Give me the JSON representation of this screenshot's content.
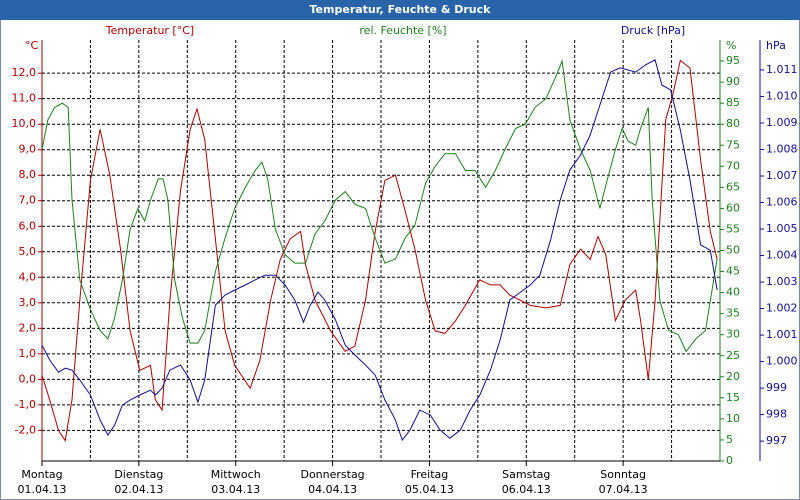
{
  "chart_data": {
    "type": "line",
    "title": "Temperatur, Feuchte & Druck",
    "xlim": [
      0,
      7
    ],
    "xticks": [
      {
        "value": 0,
        "label": "Montag"
      },
      {
        "value": 1,
        "label": "Dienstag"
      },
      {
        "value": 2,
        "label": "Mittwoch"
      },
      {
        "value": 3,
        "label": "Donnerstag"
      },
      {
        "value": 4,
        "label": "Freitag"
      },
      {
        "value": 5,
        "label": "Samstag"
      },
      {
        "value": 6,
        "label": "Sonntag"
      }
    ],
    "xtick_dates": [
      "01.04.13",
      "02.04.13",
      "03.04.13",
      "04.04.13",
      "05.04.13",
      "06.04.13",
      "07.04.13"
    ],
    "xminor": [
      0.5,
      1.5,
      2.5,
      3.5,
      4.5,
      5.5,
      6.5,
      7
    ],
    "grid": true,
    "ylabel": "°C",
    "ylim": [
      -3.2,
      13.3
    ],
    "yticks": [
      {
        "value": -2,
        "label": "-2,0"
      },
      {
        "value": -1,
        "label": "-1,0"
      },
      {
        "value": 0,
        "label": "0,0"
      },
      {
        "value": 1,
        "label": "1,0"
      },
      {
        "value": 2,
        "label": "2,0"
      },
      {
        "value": 3,
        "label": "3,0"
      },
      {
        "value": 4,
        "label": "4,0"
      },
      {
        "value": 5,
        "label": "5,0"
      },
      {
        "value": 6,
        "label": "6,0"
      },
      {
        "value": 7,
        "label": "7,0"
      },
      {
        "value": 8,
        "label": "8,0"
      },
      {
        "value": 9,
        "label": "9,0"
      },
      {
        "value": 10,
        "label": "10,0"
      },
      {
        "value": 11,
        "label": "11,0"
      },
      {
        "value": 12,
        "label": "12,0"
      }
    ],
    "y2label": "%",
    "y2lim": [
      0,
      100
    ],
    "y2ticks": [
      0,
      5,
      10,
      15,
      20,
      25,
      30,
      35,
      40,
      45,
      50,
      55,
      60,
      65,
      70,
      75,
      80,
      85,
      90,
      95
    ],
    "y3label": "hPa",
    "y3lim": [
      996.25,
      1012.13
    ],
    "y3ticks": [
      997,
      998,
      999,
      {
        "value": 1000,
        "label": "1.000"
      },
      {
        "value": 1001,
        "label": "1.001"
      },
      {
        "value": 1002,
        "label": "1.002"
      },
      {
        "value": 1003,
        "label": "1.003"
      },
      {
        "value": 1004,
        "label": "1.004"
      },
      {
        "value": 1005,
        "label": "1.005"
      },
      {
        "value": 1006,
        "label": "1.006"
      },
      {
        "value": 1007,
        "label": "1.007"
      },
      {
        "value": 1008,
        "label": "1.008"
      },
      {
        "value": 1009,
        "label": "1.009"
      },
      {
        "value": 1010,
        "label": "1.010"
      },
      {
        "value": 1011,
        "label": "1.011"
      }
    ],
    "series": [
      {
        "name": "Temperatur [°C]",
        "color": "#b00000",
        "axis": "y",
        "x": [
          0,
          0.08,
          0.17,
          0.24,
          0.31,
          0.39,
          0.5,
          0.6,
          0.7,
          0.81,
          0.91,
          1.01,
          1.12,
          1.17,
          1.24,
          1.32,
          1.43,
          1.53,
          1.6,
          1.68,
          1.79,
          1.89,
          1.99,
          2.15,
          2.25,
          2.36,
          2.46,
          2.56,
          2.67,
          2.72,
          2.82,
          2.98,
          3.13,
          3.23,
          3.34,
          3.44,
          3.54,
          3.65,
          3.75,
          3.85,
          3.96,
          4.06,
          4.16,
          4.27,
          4.37,
          4.52,
          4.63,
          4.73,
          4.83,
          4.94,
          5.04,
          5.2,
          5.35,
          5.45,
          5.56,
          5.66,
          5.74,
          5.82,
          5.92,
          6.02,
          6.13,
          6.18,
          6.26,
          6.33,
          6.44,
          6.51,
          6.59,
          6.69,
          6.8,
          6.9,
          6.97
        ],
        "values": [
          0.16,
          -0.8,
          -2.0,
          -2.4,
          -0.8,
          3.1,
          7.8,
          9.8,
          8.0,
          5.1,
          1.9,
          0.35,
          0.55,
          -0.8,
          -1.2,
          3.1,
          7.4,
          9.8,
          10.6,
          9.4,
          5.5,
          1.9,
          0.55,
          -0.35,
          0.75,
          3.1,
          4.7,
          5.5,
          5.8,
          4.5,
          3.1,
          1.9,
          1.1,
          1.3,
          3.1,
          5.8,
          7.8,
          8.0,
          6.6,
          5.1,
          3.1,
          1.9,
          1.8,
          2.3,
          2.9,
          3.9,
          3.7,
          3.7,
          3.3,
          3.1,
          2.9,
          2.8,
          2.9,
          4.5,
          5.1,
          4.7,
          5.6,
          4.9,
          2.3,
          3.1,
          3.5,
          2.3,
          0.0,
          3.1,
          10.2,
          11.1,
          12.5,
          12.2,
          8.6,
          5.8,
          4.7
        ]
      },
      {
        "name": "rel. Feuchte [%]",
        "color": "#208020",
        "axis": "y2",
        "x": [
          0,
          0.06,
          0.13,
          0.21,
          0.27,
          0.31,
          0.39,
          0.5,
          0.6,
          0.68,
          0.75,
          0.83,
          0.91,
          0.99,
          1.06,
          1.12,
          1.2,
          1.25,
          1.3,
          1.37,
          1.45,
          1.53,
          1.61,
          1.68,
          1.79,
          1.89,
          1.99,
          2.1,
          2.2,
          2.27,
          2.33,
          2.41,
          2.51,
          2.61,
          2.72,
          2.82,
          2.92,
          3.03,
          3.13,
          3.23,
          3.34,
          3.44,
          3.54,
          3.65,
          3.75,
          3.85,
          3.96,
          4.06,
          4.16,
          4.27,
          4.37,
          4.47,
          4.58,
          4.68,
          4.78,
          4.89,
          4.99,
          5.09,
          5.2,
          5.3,
          5.37,
          5.45,
          5.56,
          5.66,
          5.76,
          5.85,
          5.92,
          5.99,
          6.05,
          6.13,
          6.18,
          6.26,
          6.3,
          6.38,
          6.47,
          6.57,
          6.65,
          6.75,
          6.85,
          6.92,
          6.97
        ],
        "values": [
          74,
          81,
          84,
          85,
          84,
          62,
          43,
          36,
          31,
          29,
          34,
          43,
          55,
          60,
          57,
          62,
          67,
          67,
          62,
          43,
          34,
          28,
          28,
          31,
          45,
          53,
          60,
          65,
          69,
          71,
          67,
          55,
          49,
          47,
          47,
          54,
          57,
          62,
          64,
          61,
          60,
          53,
          47,
          48,
          53,
          56,
          66,
          70,
          73,
          73,
          69,
          69,
          65,
          69,
          74,
          79,
          80,
          84,
          86,
          91,
          95,
          81,
          74,
          69,
          60,
          68,
          74,
          79,
          76,
          75,
          79,
          84,
          62,
          38,
          31,
          30,
          26,
          29,
          31,
          41,
          48
        ]
      },
      {
        "name": "Druck [hPa]",
        "color": "#101090",
        "axis": "y3",
        "x": [
          0,
          0.08,
          0.17,
          0.24,
          0.31,
          0.39,
          0.5,
          0.6,
          0.68,
          0.75,
          0.83,
          0.91,
          1.01,
          1.12,
          1.17,
          1.24,
          1.32,
          1.43,
          1.53,
          1.61,
          1.68,
          1.79,
          1.89,
          1.99,
          2.1,
          2.2,
          2.3,
          2.41,
          2.51,
          2.61,
          2.7,
          2.77,
          2.85,
          2.92,
          3.03,
          3.13,
          3.23,
          3.34,
          3.44,
          3.54,
          3.65,
          3.72,
          3.8,
          3.9,
          4.01,
          4.11,
          4.21,
          4.32,
          4.42,
          4.52,
          4.63,
          4.73,
          4.83,
          4.94,
          5.04,
          5.14,
          5.25,
          5.35,
          5.45,
          5.56,
          5.66,
          5.76,
          5.87,
          5.97,
          6.05,
          6.13,
          6.23,
          6.33,
          6.4,
          6.49,
          6.59,
          6.69,
          6.8,
          6.9,
          6.97
        ],
        "values": [
          1000.62,
          1000.06,
          999.6,
          999.75,
          999.68,
          999.3,
          998.74,
          997.8,
          997.23,
          997.6,
          998.36,
          998.55,
          998.74,
          998.92,
          998.74,
          999.0,
          999.68,
          999.87,
          999.3,
          998.47,
          999.3,
          1002.13,
          1002.51,
          1002.7,
          1002.89,
          1003.08,
          1003.26,
          1003.26,
          1002.89,
          1002.32,
          1001.49,
          1002.13,
          1002.62,
          1002.32,
          1001.57,
          1000.62,
          1000.25,
          999.87,
          999.49,
          998.55,
          997.79,
          997.04,
          997.42,
          998.17,
          997.98,
          997.42,
          997.11,
          997.42,
          998.17,
          998.74,
          999.68,
          1000.81,
          1002.32,
          1002.62,
          1002.89,
          1003.26,
          1004.58,
          1006.09,
          1007.23,
          1007.79,
          1008.55,
          1009.68,
          1010.92,
          1011.08,
          1011.0,
          1010.92,
          1011.19,
          1011.38,
          1010.43,
          1010.25,
          1008.74,
          1006.85,
          1004.4,
          1004.2,
          1002.7
        ]
      }
    ]
  }
}
